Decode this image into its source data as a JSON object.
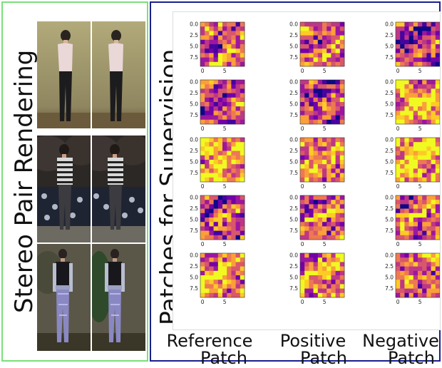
{
  "left_title": "Stereo Pair Rendering",
  "right_title": "Patches for Supervision",
  "columns": [
    {
      "line1": "Reference",
      "line2": "Patch"
    },
    {
      "line1": "Positive",
      "line2": "Patch"
    },
    {
      "line1": "Negative",
      "line2": "Patch"
    }
  ],
  "y_ticks": [
    "0.0",
    "2.5",
    "5.0",
    "7.5"
  ],
  "x_ticks": [
    "0",
    "5"
  ],
  "colormap": "plasma",
  "stereo_rows": [
    {
      "scene": "pale-blouse-black-pants",
      "bg_top": "#a19a6c",
      "bg_bottom": "#6a5a3a"
    },
    {
      "scene": "striped-sweater-sofa",
      "bg_top": "#3a3530",
      "bg_bottom": "#20232a"
    },
    {
      "scene": "black-shirt-blue-leggings",
      "bg_top": "#6e6a5a",
      "bg_bottom": "#3c3a2c"
    }
  ]
}
